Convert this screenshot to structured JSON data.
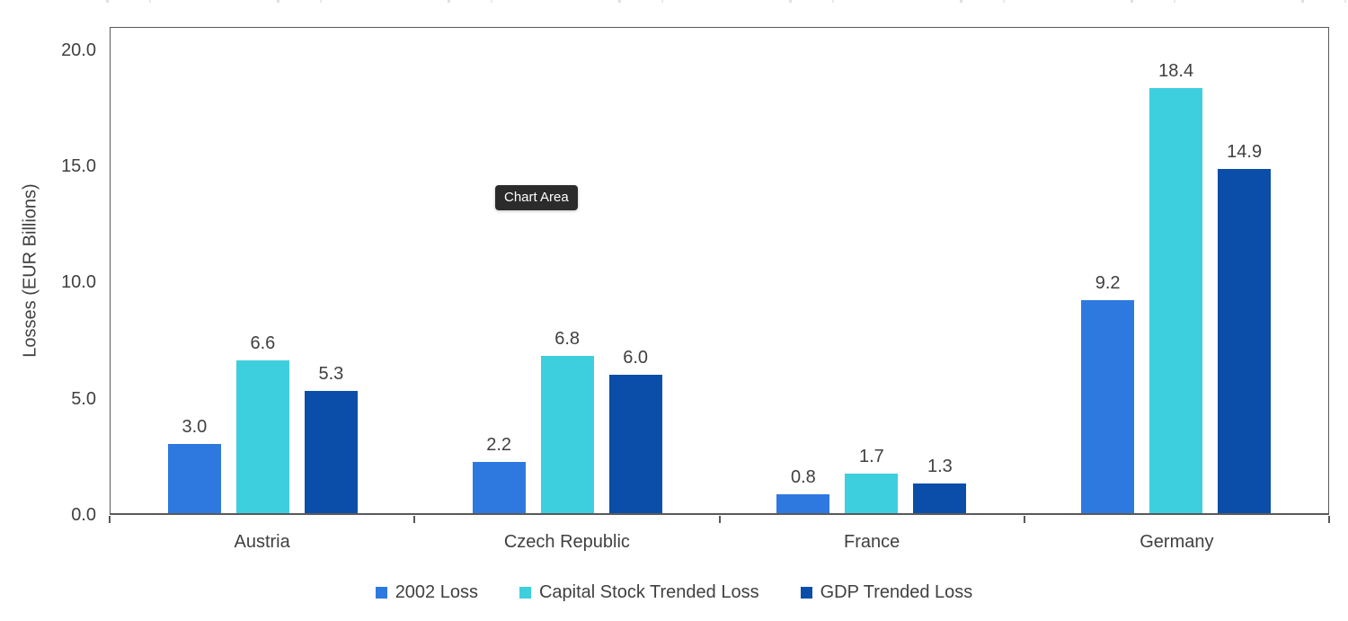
{
  "tooltip": {
    "label": "Chart Area"
  },
  "colors": {
    "series_2002_loss": "#2E79DF",
    "series_capital_stock": "#3DCFDE",
    "series_gdp": "#0B4EA9",
    "text": "#404040",
    "axis": "#595959",
    "tooltip_bg": "#2B2B2B",
    "tooltip_text": "#FFFFFF"
  },
  "chart_data": {
    "type": "bar",
    "title": "",
    "xlabel": "",
    "ylabel": "Losses (EUR Billions)",
    "categories": [
      "Austria",
      "Czech Republic",
      "France",
      "Germany"
    ],
    "series": [
      {
        "name": "2002 Loss",
        "color": "#2E79DF",
        "values": [
          3.0,
          2.2,
          0.8,
          9.2
        ]
      },
      {
        "name": "Capital Stock Trended Loss",
        "color": "#3DCFDE",
        "values": [
          6.6,
          6.8,
          1.7,
          18.4
        ]
      },
      {
        "name": "GDP Trended Loss",
        "color": "#0B4EA9",
        "values": [
          5.3,
          6.0,
          1.3,
          14.9
        ]
      }
    ],
    "y_ticks": [
      0.0,
      5.0,
      10.0,
      15.0,
      20.0
    ],
    "ylim": [
      0,
      21
    ],
    "grid": false,
    "data_labels": true,
    "label_decimals": 1,
    "tick_decimals": 1,
    "legend_position": "bottom"
  }
}
